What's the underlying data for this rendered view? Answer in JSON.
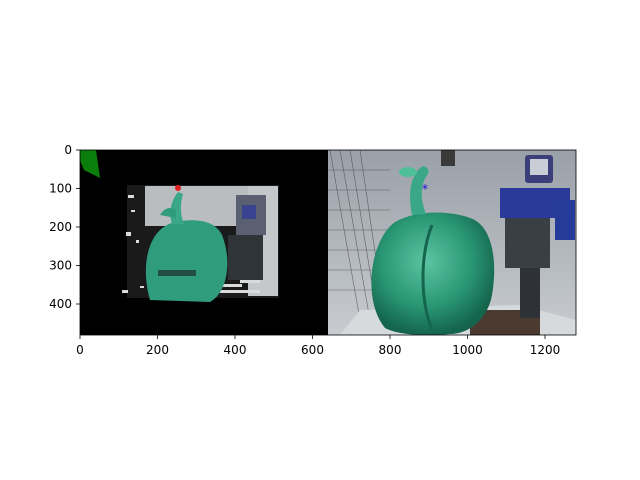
{
  "figure": {
    "x_ticks": [
      "0",
      "200",
      "400",
      "600",
      "800",
      "1000",
      "1200"
    ],
    "y_ticks": [
      "0",
      "100",
      "200",
      "300",
      "400"
    ]
  },
  "left_panel": {
    "description_colors": {
      "background": "#000000",
      "pepper": "#2f9c7c",
      "marker": "#e02020",
      "corner_marker": "#0a7d0a"
    }
  },
  "right_panel": {
    "description_colors": {
      "pepper": "#2c9b78",
      "robot": "#2a3a9a",
      "marker": "#1010e0"
    }
  }
}
